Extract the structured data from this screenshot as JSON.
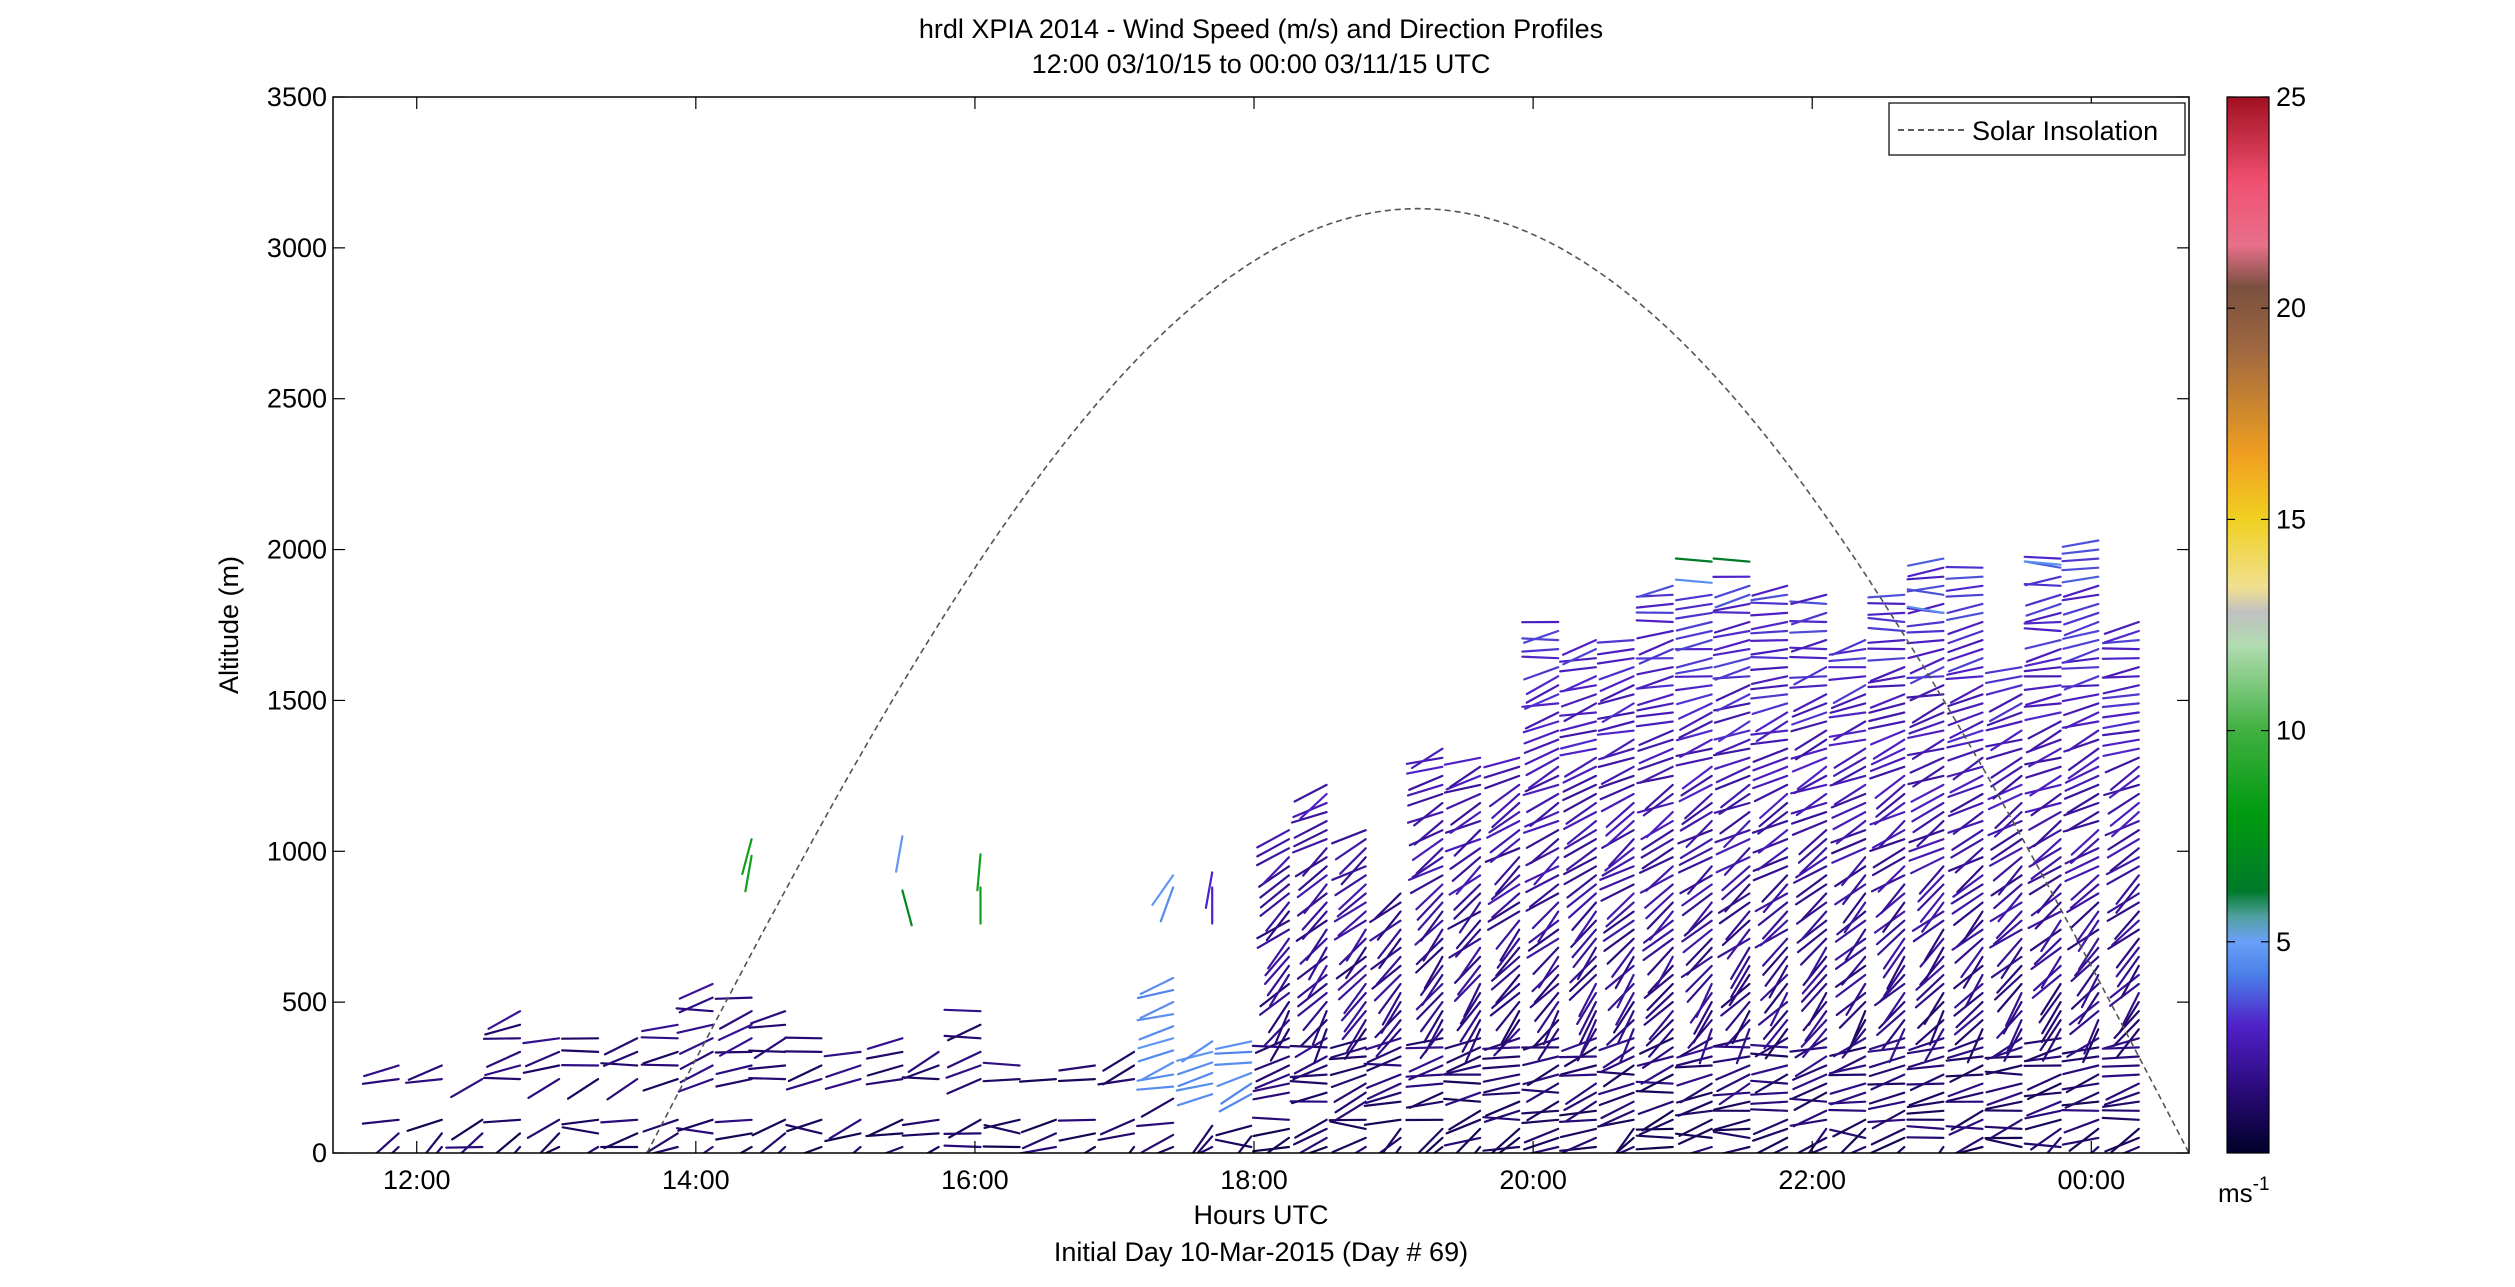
{
  "chart_data": {
    "type": "wind-barb-profile",
    "title": "hrdl XPIA 2014 - Wind Speed (m/s) and Direction Profiles",
    "subtitle": "12:00 03/10/15 to 00:00 03/11/15  UTC",
    "xlabel": "Hours UTC",
    "xlabel2": "Initial Day 10-Mar-2015 (Day # 69)",
    "ylabel": "Altitude (m)",
    "xlim": [
      11.4,
      24.7
    ],
    "ylim": [
      0,
      3500
    ],
    "x_ticks": [
      12,
      14,
      16,
      18,
      20,
      22,
      24
    ],
    "x_tick_labels": [
      "12:00",
      "14:00",
      "16:00",
      "18:00",
      "20:00",
      "22:00",
      "00:00"
    ],
    "y_ticks": [
      0,
      500,
      1000,
      1500,
      2000,
      2500,
      3000,
      3500
    ],
    "y_tick_labels": [
      "0",
      "500",
      "1000",
      "1500",
      "2000",
      "2500",
      "3000",
      "3500"
    ],
    "legend": {
      "entries": [
        "Solar Insolation"
      ],
      "position": "top-right"
    },
    "colorbar": {
      "range": [
        0,
        25
      ],
      "ticks": [
        5,
        10,
        15,
        20,
        25
      ],
      "tick_labels": [
        "5",
        "10",
        "15",
        "20",
        "25"
      ],
      "unit": "ms",
      "unit_exp": "-1",
      "stops": [
        {
          "v": 0.0,
          "c": "#000028"
        },
        {
          "v": 1.5,
          "c": "#2a0a7a"
        },
        {
          "v": 3.0,
          "c": "#5020c8"
        },
        {
          "v": 4.2,
          "c": "#4a7ee8"
        },
        {
          "v": 5.0,
          "c": "#6aa0f8"
        },
        {
          "v": 5.6,
          "c": "#50a0a0"
        },
        {
          "v": 6.2,
          "c": "#007a2a"
        },
        {
          "v": 8.0,
          "c": "#009a10"
        },
        {
          "v": 10.0,
          "c": "#40b040"
        },
        {
          "v": 12.0,
          "c": "#b0dcb0"
        },
        {
          "v": 12.8,
          "c": "#c0c0c0"
        },
        {
          "v": 13.4,
          "c": "#f0e090"
        },
        {
          "v": 15.0,
          "c": "#f0d020"
        },
        {
          "v": 16.5,
          "c": "#f0a020"
        },
        {
          "v": 19.0,
          "c": "#a06840"
        },
        {
          "v": 20.5,
          "c": "#7a5040"
        },
        {
          "v": 21.5,
          "c": "#e8708a"
        },
        {
          "v": 23.0,
          "c": "#f05070"
        },
        {
          "v": 25.0,
          "c": "#a01020"
        }
      ]
    },
    "solar_insolation": {
      "start_hour": 13.65,
      "peak_hour": 19.18,
      "end_hour": 24.7,
      "peak_altitude": 3130
    },
    "profile_times": [
      11.87,
      12.18,
      12.47,
      12.74,
      13.02,
      13.3,
      13.58,
      13.87,
      14.12,
      14.4,
      14.64,
      14.9,
      15.18,
      15.48,
      15.74,
      16.04,
      16.32,
      16.58,
      16.86,
      17.14,
      17.42,
      17.7,
      17.98,
      18.25,
      18.52,
      18.8,
      19.05,
      19.35,
      19.62,
      19.9,
      20.18,
      20.45,
      20.72,
      21.0,
      21.28,
      21.55,
      21.82,
      22.1,
      22.38,
      22.66,
      22.94,
      23.22,
      23.5,
      23.78,
      24.05,
      24.34
    ],
    "profile_tops": [
      320,
      300,
      270,
      470,
      380,
      410,
      390,
      430,
      560,
      540,
      470,
      420,
      350,
      380,
      360,
      500,
      290,
      270,
      290,
      340,
      590,
      400,
      400,
      1070,
      1230,
      1090,
      880,
      1360,
      1320,
      1320,
      1780,
      1700,
      1720,
      1880,
      1850,
      1930,
      1900,
      1850,
      1700,
      1850,
      1980,
      1960,
      1620,
      1980,
      2030,
      1760
    ],
    "profile_spacing_m": [
      45,
      45,
      45,
      45,
      45,
      45,
      45,
      45,
      45,
      45,
      45,
      45,
      45,
      45,
      45,
      45,
      45,
      45,
      45,
      45,
      40,
      35,
      35,
      30,
      30,
      30,
      30,
      30,
      30,
      30,
      30,
      30,
      30,
      30,
      30,
      30,
      30,
      30,
      30,
      30,
      30,
      30,
      30,
      30,
      30,
      30
    ],
    "profile_gaps_m": [
      [
        110,
        220
      ],
      [
        110,
        220
      ],
      [
        110,
        220
      ],
      [
        110,
        220
      ],
      [
        110,
        220
      ],
      [
        110,
        220
      ],
      [
        110,
        220
      ],
      [
        110,
        220
      ],
      [
        110,
        220
      ],
      [
        110,
        220
      ],
      [
        110,
        220
      ],
      [
        110,
        220
      ],
      [
        110,
        220
      ],
      [
        110,
        220
      ],
      [
        110,
        220
      ],
      [
        110,
        220
      ],
      [
        110,
        220
      ],
      [
        110,
        220
      ],
      [
        110,
        220
      ],
      [
        110,
        220
      ],
      [
        110,
        180
      ],
      [
        110,
        180
      ],
      [
        110,
        180
      ],
      [
        110,
        180
      ],
      [
        110,
        150
      ],
      [
        110,
        150
      ],
      [
        110,
        150
      ],
      [
        110,
        150
      ],
      [
        110,
        130
      ],
      [
        110,
        130
      ],
      [
        110,
        130
      ],
      [
        110,
        130
      ],
      [
        110,
        130
      ],
      [
        110,
        130
      ],
      [
        110,
        130
      ],
      [
        110,
        130
      ],
      [
        110,
        130
      ],
      [
        110,
        130
      ],
      [
        110,
        130
      ],
      [
        110,
        130
      ],
      [
        110,
        130
      ],
      [
        110,
        130
      ],
      [
        110,
        130
      ],
      [
        110,
        130
      ],
      [
        110,
        130
      ],
      [
        110,
        130
      ]
    ],
    "isolated_barbs": [
      {
        "x": 14.4,
        "y": 1040,
        "speed": 8.5,
        "dir_deg": 195
      },
      {
        "x": 14.4,
        "y": 985,
        "speed": 8.5,
        "dir_deg": 190
      },
      {
        "x": 15.48,
        "y": 1050,
        "speed": 4.8,
        "dir_deg": 190
      },
      {
        "x": 15.48,
        "y": 870,
        "speed": 7.0,
        "dir_deg": 165
      },
      {
        "x": 16.04,
        "y": 990,
        "speed": 8.5,
        "dir_deg": 185
      },
      {
        "x": 16.04,
        "y": 880,
        "speed": 8.5,
        "dir_deg": 180
      },
      {
        "x": 17.42,
        "y": 920,
        "speed": 4.8,
        "dir_deg": 215
      },
      {
        "x": 17.42,
        "y": 880,
        "speed": 4.5,
        "dir_deg": 200
      },
      {
        "x": 17.7,
        "y": 930,
        "speed": 3.0,
        "dir_deg": 190
      },
      {
        "x": 17.7,
        "y": 880,
        "speed": 3.0,
        "dir_deg": 180
      },
      {
        "x": 21.28,
        "y": 1960,
        "speed": 6.3,
        "dir_deg": 275
      },
      {
        "x": 21.55,
        "y": 1960,
        "speed": 6.3,
        "dir_deg": 275
      },
      {
        "x": 21.28,
        "y": 1890,
        "speed": 4.6,
        "dir_deg": 275
      },
      {
        "x": 22.94,
        "y": 1790,
        "speed": 4.6,
        "dir_deg": 280
      },
      {
        "x": 23.78,
        "y": 1950,
        "speed": 4.6,
        "dir_deg": 275
      }
    ]
  }
}
